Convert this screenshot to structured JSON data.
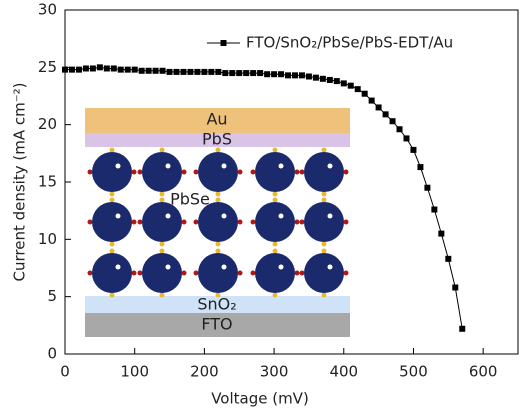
{
  "chart_data": {
    "type": "line",
    "x_label": "Voltage (mV)",
    "y_label": "Current density (mA cm⁻²)",
    "x": [
      0,
      10,
      20,
      30,
      40,
      50,
      60,
      70,
      80,
      90,
      100,
      110,
      120,
      130,
      140,
      150,
      160,
      170,
      180,
      190,
      200,
      210,
      220,
      230,
      240,
      250,
      260,
      270,
      280,
      290,
      300,
      310,
      320,
      330,
      340,
      350,
      360,
      370,
      380,
      390,
      400,
      410,
      420,
      430,
      440,
      450,
      460,
      470,
      480,
      490,
      500,
      510,
      520,
      530,
      540,
      550,
      560,
      570
    ],
    "series": [
      {
        "name": "FTO/SnO₂/PbSe/PbS-EDT/Au",
        "color": "#000000",
        "values": [
          24.8,
          24.8,
          24.8,
          24.9,
          24.9,
          25.0,
          24.9,
          24.9,
          24.8,
          24.8,
          24.8,
          24.7,
          24.7,
          24.7,
          24.7,
          24.6,
          24.6,
          24.6,
          24.6,
          24.6,
          24.6,
          24.6,
          24.6,
          24.5,
          24.5,
          24.5,
          24.5,
          24.5,
          24.5,
          24.4,
          24.4,
          24.4,
          24.3,
          24.3,
          24.3,
          24.2,
          24.1,
          24.0,
          23.9,
          23.8,
          23.6,
          23.4,
          23.1,
          22.7,
          22.1,
          21.5,
          20.9,
          20.3,
          19.6,
          18.8,
          17.8,
          16.3,
          14.5,
          12.6,
          10.5,
          8.3,
          5.8,
          2.2
        ]
      }
    ],
    "xlim": [
      0,
      650
    ],
    "ylim": [
      0,
      30
    ],
    "xticks": [
      0,
      100,
      200,
      300,
      400,
      500,
      600
    ],
    "yticks": [
      0,
      5,
      10,
      15,
      20,
      25,
      30
    ],
    "legend": "top-right",
    "annotations": [
      "Au",
      "PbS",
      "PbSe",
      "SnO₂",
      "FTO"
    ]
  }
}
